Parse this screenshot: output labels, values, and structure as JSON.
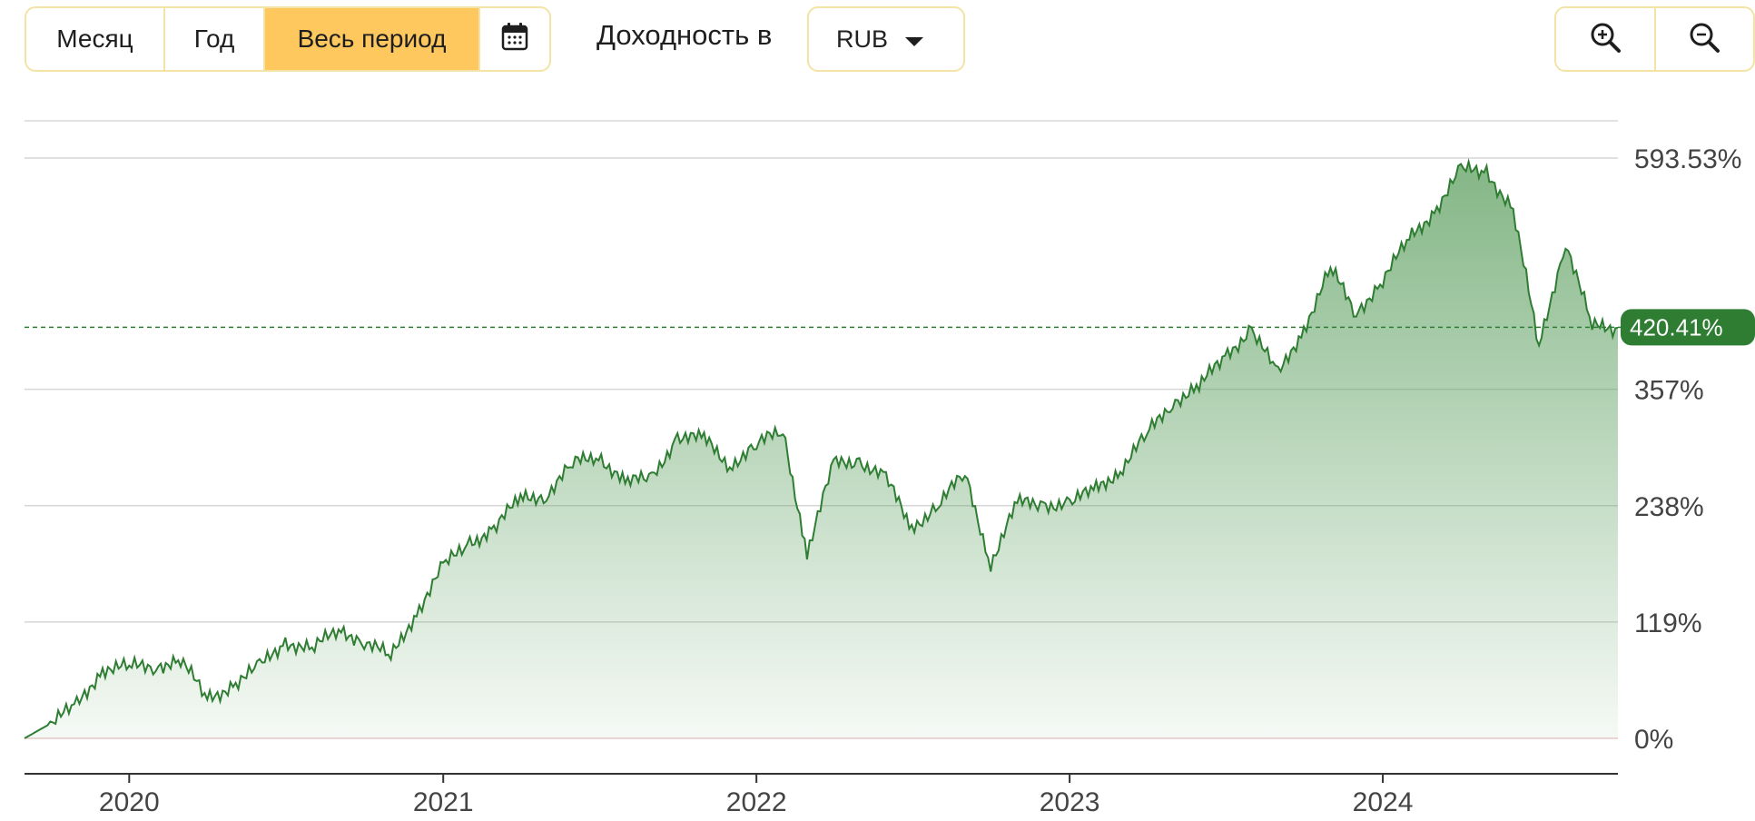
{
  "controls": {
    "periods": [
      "Месяц",
      "Год",
      "Весь период"
    ],
    "active_period": "Весь период",
    "yield_label": "Доходность в",
    "currency": "RUB"
  },
  "colors": {
    "accent": "#ffc85e",
    "line": "#2e7d32",
    "badge": "#2e7d32",
    "fill_top": "#5b9e5e",
    "border": "#f3e3a6"
  },
  "icons": [
    "calendar-icon",
    "caret-down-icon",
    "zoom-in-icon",
    "zoom-out-icon"
  ],
  "chart_data": {
    "type": "area",
    "y_unit": "%",
    "ylim": [
      0,
      600
    ],
    "yticks": [
      0,
      119,
      238,
      357,
      593.53
    ],
    "ytick_labels": [
      "0%",
      "119%",
      "238%",
      "357%",
      "593.53%"
    ],
    "current_value_label": "420.41%",
    "current_value": 420.41,
    "xtick_labels": [
      "2020",
      "2021",
      "2022",
      "2023",
      "2024"
    ],
    "grid": true,
    "series": [
      {
        "x": [
          "2019-09",
          "2019-10",
          "2019-11",
          "2019-12",
          "2020-01",
          "2020-02",
          "2020-03",
          "2020-04",
          "2020-05",
          "2020-06",
          "2020-07",
          "2020-08",
          "2020-09",
          "2020-10",
          "2020-11",
          "2020-12",
          "2021-01",
          "2021-02",
          "2021-03",
          "2021-04",
          "2021-05",
          "2021-06",
          "2021-07",
          "2021-08",
          "2021-09",
          "2021-10",
          "2021-11",
          "2021-12",
          "2022-01",
          "2022-02",
          "2022-03",
          "2022-04",
          "2022-05",
          "2022-06",
          "2022-07",
          "2022-08",
          "2022-09",
          "2022-10",
          "2022-11",
          "2022-12",
          "2023-01",
          "2023-02",
          "2023-03",
          "2023-04",
          "2023-05",
          "2023-06",
          "2023-07",
          "2023-08",
          "2023-09",
          "2023-10",
          "2023-11",
          "2023-12",
          "2024-01",
          "2024-02",
          "2024-03",
          "2024-04",
          "2024-05",
          "2024-06",
          "2024-07",
          "2024-08",
          "2024-09",
          "2024-10"
        ],
        "values": [
          0,
          15,
          33,
          72,
          72,
          75,
          80,
          40,
          55,
          72,
          100,
          90,
          112,
          100,
          82,
          130,
          175,
          200,
          215,
          245,
          250,
          280,
          290,
          262,
          265,
          310,
          305,
          280,
          300,
          315,
          190,
          280,
          285,
          265,
          215,
          240,
          270,
          180,
          240,
          240,
          240,
          255,
          275,
          310,
          345,
          360,
          390,
          420,
          370,
          420,
          480,
          435,
          470,
          510,
          540,
          580,
          580,
          540,
          400,
          510,
          420,
          420
        ]
      }
    ]
  }
}
